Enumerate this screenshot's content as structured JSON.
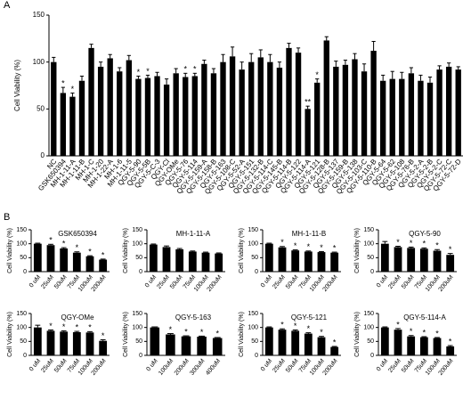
{
  "chart_data": [
    {
      "type": "bar",
      "panel": "A",
      "ylabel": "Cell Viability (%)",
      "color": "#000000",
      "ylim": [
        0,
        150
      ],
      "yticks": [
        0,
        50,
        100,
        150
      ],
      "categories": [
        "NC",
        "GSK650394",
        "MH-1-11-A",
        "MH-1-11-B",
        "MH-1-C",
        "MH-1-20",
        "MH-1-22-A",
        "MH-1-6",
        "MH-1-11-5",
        "QGY-5-90",
        "QGY-5-5B",
        "QGY-5-C-3",
        "QGY-Cl",
        "QGY-OMe",
        "QGY-5-76",
        "QGY-5-114",
        "QGY-5-159-A",
        "QGY-5-158-B",
        "QGY-5-163",
        "QGY-5-108-C",
        "QGY-5-52-A",
        "QGY-5-151",
        "QGY-5-132-B",
        "QGY-5-114-C",
        "QGY-5-145-B",
        "QGY-5-114-B",
        "QGY-5-122",
        "QGY-5-114-A",
        "QGY-5-121",
        "QGY-5-128-B",
        "QGY-5-137",
        "QGY-5-159-B",
        "QGY-5-138",
        "QGY-5-103-C",
        "QGY-5-110-B",
        "QGY-5-64",
        "QGY-5-62",
        "QGY-5-108",
        "QGY-5-76-B",
        "QGY-5-2-A",
        "QGY-5-2-B",
        "QGY-5-2-C",
        "QGY-5-72-C",
        "QGY-5-72-D"
      ],
      "values": [
        100,
        67,
        63,
        80,
        115,
        95,
        104,
        90,
        102,
        82,
        83,
        85,
        76,
        88,
        84,
        85,
        98,
        88,
        100,
        106,
        92,
        100,
        105,
        100,
        94,
        115,
        110,
        50,
        78,
        123,
        95,
        97,
        103,
        90,
        112,
        80,
        82,
        82,
        88,
        80,
        78,
        92,
        95,
        92
      ],
      "errors": [
        5,
        6,
        4,
        5,
        4,
        5,
        4,
        4,
        5,
        3,
        3,
        4,
        6,
        5,
        4,
        3,
        4,
        5,
        8,
        10,
        8,
        9,
        8,
        8,
        6,
        5,
        5,
        3,
        4,
        4,
        6,
        5,
        6,
        8,
        10,
        6,
        8,
        7,
        6,
        6,
        6,
        4,
        4,
        3
      ],
      "annotations": [
        null,
        "*",
        "*",
        null,
        null,
        null,
        null,
        null,
        null,
        "*",
        "*",
        null,
        null,
        null,
        "*",
        "*",
        null,
        null,
        null,
        null,
        null,
        null,
        null,
        null,
        null,
        null,
        null,
        "**",
        "*",
        null,
        null,
        null,
        null,
        null,
        null,
        null,
        null,
        null,
        null,
        null,
        null,
        null,
        null,
        null
      ]
    },
    {
      "type": "bar",
      "panel": "B",
      "title": "GSK650394",
      "ylabel": "Cell Viability (%)",
      "color": "#000000",
      "ylim": [
        0,
        150
      ],
      "yticks": [
        0,
        50,
        100,
        150
      ],
      "categories": [
        "0 uM",
        "25uM",
        "50uM",
        "75uM",
        "100uM",
        "200uM"
      ],
      "values": [
        100,
        95,
        83,
        68,
        55,
        43
      ],
      "errors": [
        2,
        3,
        3,
        3,
        2,
        2
      ],
      "annotations": [
        null,
        "*",
        "*",
        "*",
        "*",
        "*"
      ]
    },
    {
      "type": "bar",
      "title": "MH-1-11-A",
      "ylabel": "Cell Viability (%)",
      "color": "#000000",
      "ylim": [
        0,
        150
      ],
      "yticks": [
        0,
        50,
        100,
        150
      ],
      "categories": [
        "0 uM",
        "25uM",
        "50uM",
        "75uM",
        "100uM",
        "200uM"
      ],
      "values": [
        97,
        88,
        80,
        72,
        68,
        65
      ],
      "errors": [
        2,
        4,
        3,
        2,
        2,
        2
      ],
      "annotations": [
        null,
        null,
        null,
        null,
        null,
        null
      ]
    },
    {
      "type": "bar",
      "title": "MH-1-11-B",
      "ylabel": "Cell Viability (%)",
      "color": "#000000",
      "ylim": [
        0,
        150
      ],
      "yticks": [
        0,
        50,
        100,
        150
      ],
      "categories": [
        "0 uM",
        "25uM",
        "50uM",
        "75uM",
        "100uM",
        "200uM"
      ],
      "values": [
        100,
        87,
        76,
        72,
        70,
        68
      ],
      "errors": [
        2,
        3,
        2,
        2,
        2,
        2
      ],
      "annotations": [
        null,
        "*",
        "*",
        "*",
        "*",
        "*"
      ]
    },
    {
      "type": "bar",
      "title": "QGY-5-90",
      "ylabel": "Cell Viability (%)",
      "color": "#000000",
      "ylim": [
        0,
        150
      ],
      "yticks": [
        0,
        50,
        100,
        150
      ],
      "categories": [
        "0 uM",
        "25uM",
        "50uM",
        "75uM",
        "100uM",
        "200uM"
      ],
      "values": [
        100,
        88,
        85,
        82,
        75,
        60
      ],
      "errors": [
        8,
        3,
        3,
        3,
        4,
        5
      ],
      "annotations": [
        null,
        "*",
        "*",
        "*",
        "*",
        "*"
      ]
    },
    {
      "type": "bar",
      "title": "QGY-OMe",
      "ylabel": "Cell Viability (%)",
      "color": "#000000",
      "ylim": [
        0,
        150
      ],
      "yticks": [
        0,
        50,
        100,
        150
      ],
      "categories": [
        "0 uM",
        "25uM",
        "50uM",
        "75uM",
        "100uM",
        "200uM"
      ],
      "values": [
        100,
        88,
        85,
        83,
        82,
        52
      ],
      "errors": [
        8,
        3,
        3,
        3,
        3,
        4
      ],
      "annotations": [
        null,
        "*",
        "*",
        "*",
        "*",
        "*"
      ]
    },
    {
      "type": "bar",
      "title": "QGY-5-163",
      "ylabel": "Cell Viability (%)",
      "color": "#000000",
      "ylim": [
        0,
        150
      ],
      "yticks": [
        0,
        50,
        100,
        150
      ],
      "categories": [
        "0 uM",
        "100uM",
        "200uM",
        "300uM",
        "400uM"
      ],
      "values": [
        100,
        75,
        68,
        67,
        62
      ],
      "errors": [
        2,
        3,
        2,
        2,
        2
      ],
      "annotations": [
        null,
        "*",
        "*",
        "*",
        "*"
      ]
    },
    {
      "type": "bar",
      "title": "QGY-5-121",
      "ylabel": "Cell Viability (%)",
      "color": "#000000",
      "ylim": [
        0,
        150
      ],
      "yticks": [
        0,
        50,
        100,
        150
      ],
      "categories": [
        "0 uM",
        "25uM",
        "50uM",
        "75uM",
        "100uM",
        "200uM"
      ],
      "values": [
        100,
        92,
        88,
        78,
        65,
        30
      ],
      "errors": [
        2,
        3,
        3,
        3,
        3,
        2
      ],
      "annotations": [
        null,
        "*",
        "*",
        "*",
        "*",
        "*"
      ]
    },
    {
      "type": "bar",
      "title": "QGY-5-114-A",
      "ylabel": "Cell Viability (%)",
      "color": "#000000",
      "ylim": [
        0,
        150
      ],
      "yticks": [
        0,
        50,
        100,
        150
      ],
      "categories": [
        "0 uM",
        "25uM",
        "50uM",
        "75uM",
        "100uM",
        "200uM"
      ],
      "values": [
        100,
        92,
        68,
        65,
        62,
        32
      ],
      "errors": [
        2,
        4,
        3,
        2,
        2,
        3
      ],
      "annotations": [
        null,
        "*",
        "*",
        "*",
        "*",
        "*"
      ]
    }
  ]
}
